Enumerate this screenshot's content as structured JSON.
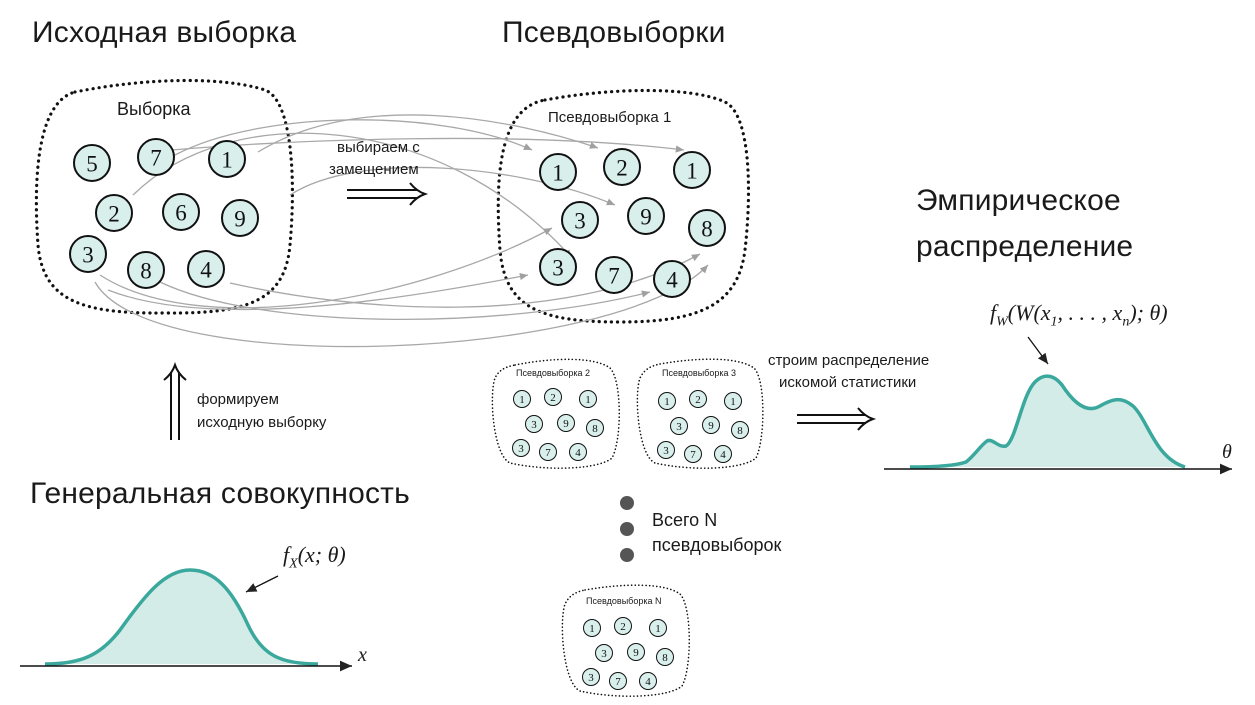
{
  "headings": {
    "source_sample": "Исходная выборка",
    "pseudo_samples": "Псевдовыборки",
    "empirical_line1": "Эмпирическое",
    "empirical_line2": "распределение",
    "population": "Генеральная совокупность"
  },
  "source_box": {
    "label": "Выборка",
    "balls": [
      "5",
      "7",
      "1",
      "2",
      "6",
      "9",
      "3",
      "8",
      "4"
    ]
  },
  "pseudo_sample_1": {
    "label": "Псевдовыборка 1",
    "balls": [
      "1",
      "2",
      "1",
      "3",
      "9",
      "8",
      "3",
      "7",
      "4"
    ]
  },
  "pseudo_sample_2": {
    "label": "Псевдовыборка 2",
    "balls": [
      "1",
      "2",
      "1",
      "3",
      "9",
      "8",
      "3",
      "7",
      "4"
    ]
  },
  "pseudo_sample_3": {
    "label": "Псевдовыборка 3",
    "balls": [
      "1",
      "2",
      "1",
      "3",
      "9",
      "8",
      "3",
      "7",
      "4"
    ]
  },
  "pseudo_sample_n": {
    "label": "Псевдовыборка N",
    "balls": [
      "1",
      "2",
      "1",
      "3",
      "9",
      "8",
      "3",
      "7",
      "4"
    ]
  },
  "arrow_labels": {
    "resample_line1": "выбираем с",
    "resample_line2": "замещением",
    "build_line1": "строим распределение",
    "build_line2": "искомой статистики",
    "form_line1": "формируем",
    "form_line2": "исходную выборку"
  },
  "total_label": {
    "line1": "Всего N",
    "line2": "псевдовыборок"
  },
  "formulas": {
    "population_density": "f_X(x;θ)",
    "population_axis": "x",
    "statistic_density": "f_W(W(x_1,...,x_n);θ)",
    "statistic_axis": "θ"
  },
  "colors": {
    "ball_fill": "#d8efec",
    "curve_stroke": "#3aa89c",
    "curve_fill": "#d3ece8",
    "connector_gray": "#a8a8a8",
    "dot_gray": "#555555"
  }
}
